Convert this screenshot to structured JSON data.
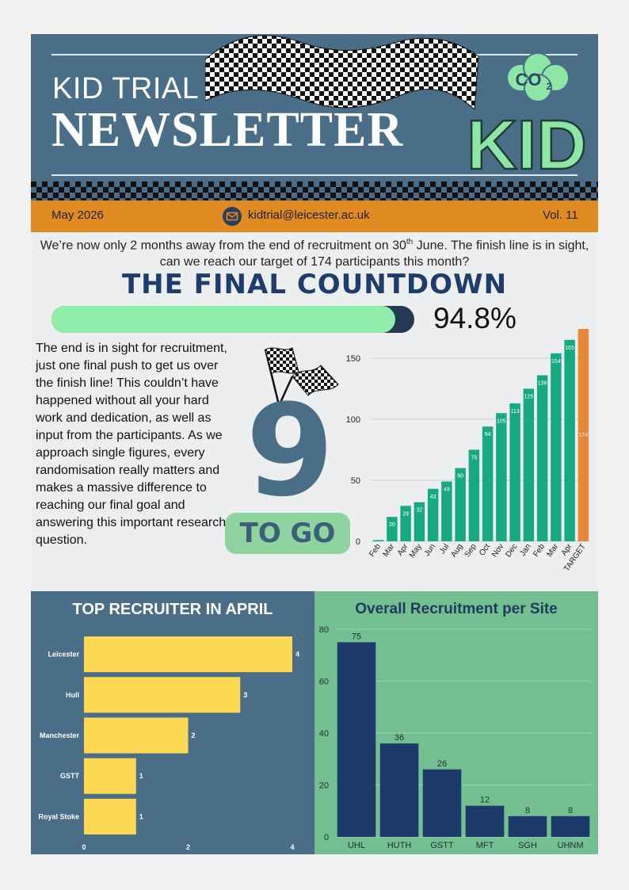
{
  "header": {
    "kicker": "KID TRIAL",
    "title": "NEWSLETTER",
    "logo_text": "KID",
    "logo_badge": "CO",
    "logo_badge_sub": "2"
  },
  "infobar": {
    "date": "May 2026",
    "email": "kidtrial@leicester.ac.uk",
    "volume": "Vol. 11"
  },
  "intro": {
    "part1": "We’re now only 2 months away from the end of recruitment on 30",
    "sup": "th",
    "part2": " June. The finish line is in sight, can we reach our target of 174 participants this month?"
  },
  "countdown": {
    "title": "THE FINAL COUNTDOWN",
    "progress": 0.948,
    "percent_label": "94.8%"
  },
  "body_text": "The end is in sight for recruitment, just one final push to get us over the finish line! This couldn’t have happened without all your hard work and dedication, as well as input from the participants. As we approach single figures, every randomisation really matters and makes a massive difference to reaching our final goal and answering this important research question.",
  "to_go": {
    "number": "9",
    "label": "TO GO"
  },
  "colors": {
    "header": "#4a6e87",
    "orange": "#e08a22",
    "green_bar": "#16a982",
    "target_bar": "#e8873a",
    "yellow_bar": "#fdd853",
    "navy_bar": "#1c3b6b"
  },
  "chart_data": [
    {
      "type": "bar",
      "categories": [
        "Feb",
        "Mar",
        "Apr",
        "May",
        "Jun",
        "Jul",
        "Aug",
        "Sep",
        "Oct",
        "Nov",
        "Dec",
        "Jan",
        "Feb",
        "Mar",
        "Apr",
        "TARGET"
      ],
      "values": [
        1,
        20,
        29,
        32,
        43,
        49,
        60,
        75,
        94,
        105,
        113,
        125,
        136,
        154,
        165,
        174
      ],
      "ylim": [
        0,
        174
      ],
      "yticks": [
        0,
        50,
        100,
        150
      ],
      "grid": true
    },
    {
      "type": "bar",
      "orientation": "horizontal",
      "title": "TOP RECRUITER IN APRIL",
      "categories": [
        "Leicester",
        "Hull",
        "Manchester",
        "GSTT",
        "Royal Stoke"
      ],
      "values": [
        4,
        3,
        2,
        1,
        1
      ],
      "xlim": [
        0,
        4
      ],
      "xticks": [
        0,
        2,
        4
      ]
    },
    {
      "type": "bar",
      "title": "Overall Recruitment per Site",
      "categories": [
        "UHL",
        "HUTH",
        "GSTT",
        "MFT",
        "SGH",
        "UHNM"
      ],
      "values": [
        75,
        36,
        26,
        12,
        8,
        8
      ],
      "ylim": [
        0,
        80
      ],
      "yticks": [
        0,
        20,
        40,
        60,
        80
      ],
      "grid": true
    }
  ]
}
